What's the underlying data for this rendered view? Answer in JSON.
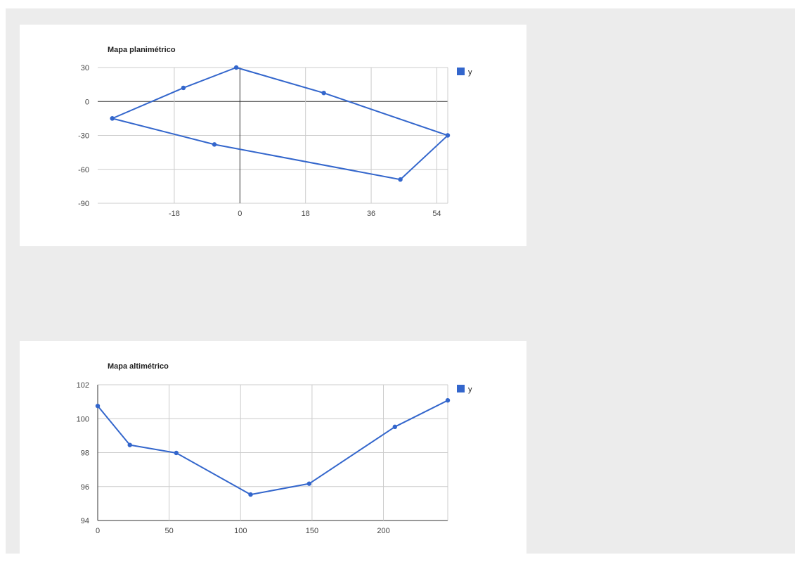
{
  "chart_data": [
    {
      "type": "scatter",
      "title": "Mapa planimétrico",
      "xlabel": "",
      "ylabel": "",
      "xlim": [
        -39,
        57
      ],
      "ylim": [
        -90,
        30
      ],
      "xticks": [
        -18,
        0,
        18,
        36,
        54
      ],
      "yticks": [
        30,
        0,
        -30,
        -60,
        -90
      ],
      "grid": true,
      "legend": "right",
      "series": [
        {
          "name": "y",
          "color": "#3366cc",
          "connected": true,
          "points": [
            [
              -35,
              -15
            ],
            [
              -15.5,
              12
            ],
            [
              -1,
              30
            ],
            [
              23,
              7.5
            ],
            [
              57,
              -30
            ],
            [
              44,
              -69
            ],
            [
              -7,
              -38
            ],
            [
              -35,
              -15
            ]
          ]
        }
      ]
    },
    {
      "type": "line",
      "title": "Mapa altimétrico",
      "xlabel": "",
      "ylabel": "",
      "xlim": [
        0,
        245
      ],
      "ylim": [
        94,
        102
      ],
      "xticks": [
        0,
        50,
        100,
        150,
        200
      ],
      "yticks": [
        102,
        100,
        98,
        96,
        94
      ],
      "grid": true,
      "legend": "right",
      "series": [
        {
          "name": "y",
          "color": "#3366cc",
          "points": [
            [
              0,
              100.75
            ],
            [
              22.5,
              98.45
            ],
            [
              55,
              97.98
            ],
            [
              107,
              95.53
            ],
            [
              148,
              96.17
            ],
            [
              208,
              99.52
            ],
            [
              245,
              101.08
            ]
          ]
        }
      ]
    }
  ]
}
